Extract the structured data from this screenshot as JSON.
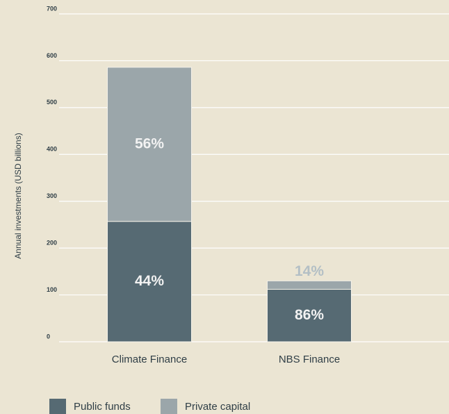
{
  "chart_data": {
    "type": "stacked_bar",
    "y_axis_label": "Annual investments (USD billions)",
    "categories": [
      "Climate Finance",
      "NBS Finance"
    ],
    "series": [
      {
        "name": "Public funds",
        "color": "#566a73",
        "values": [
          257,
          112
        ],
        "share_labels": [
          "44%",
          "86%"
        ]
      },
      {
        "name": "Private capital",
        "color": "#9ba6aa",
        "values": [
          329,
          18
        ],
        "share_labels": [
          "56%",
          "14%"
        ]
      }
    ],
    "ylim": [
      0,
      700
    ],
    "yticks": [
      0,
      100,
      200,
      300,
      400,
      500,
      600,
      700
    ],
    "grid": true,
    "legend": "bottom"
  }
}
